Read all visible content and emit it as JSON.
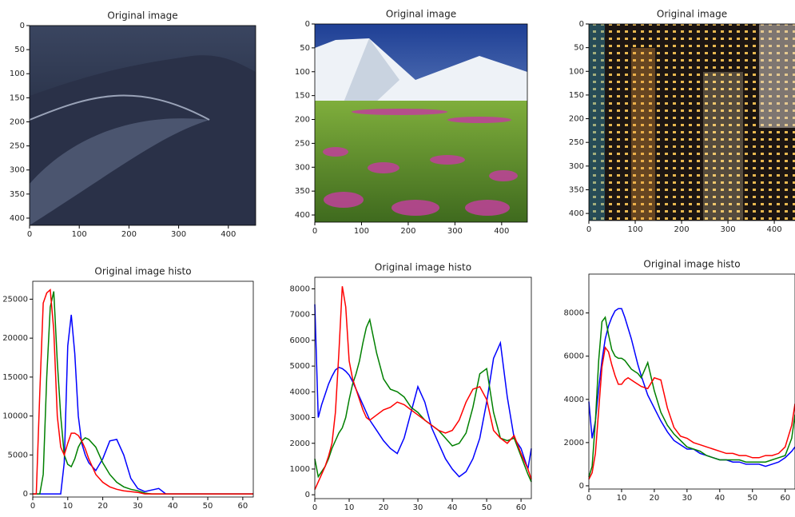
{
  "chart_data": [
    {
      "type": "image",
      "title": "Original image",
      "xlim": [
        0,
        455
      ],
      "ylim": [
        415,
        0
      ],
      "xticks": [
        0,
        100,
        200,
        300,
        400
      ],
      "yticks": [
        0,
        50,
        100,
        150,
        200,
        250,
        300,
        350,
        400
      ]
    },
    {
      "type": "image",
      "title": "Original image",
      "xlim": [
        0,
        455
      ],
      "ylim": [
        415,
        0
      ],
      "xticks": [
        0,
        100,
        200,
        300,
        400
      ],
      "yticks": [
        0,
        50,
        100,
        150,
        200,
        250,
        300,
        350,
        400
      ]
    },
    {
      "type": "image",
      "title": "Original image",
      "xlim": [
        0,
        455
      ],
      "ylim": [
        415,
        0
      ],
      "xticks": [
        0,
        100,
        200,
        300,
        400
      ],
      "yticks": [
        0,
        50,
        100,
        150,
        200,
        250,
        300,
        350,
        400
      ]
    },
    {
      "type": "line",
      "title": "Original image histo",
      "xlim": [
        0,
        63
      ],
      "ylim": [
        -400,
        27300
      ],
      "xticks": [
        0,
        10,
        20,
        30,
        40,
        50,
        60
      ],
      "yticks": [
        0,
        5000,
        10000,
        15000,
        20000,
        25000
      ],
      "x": [
        0,
        1,
        2,
        3,
        4,
        5,
        6,
        7,
        8,
        9,
        10,
        11,
        12,
        13,
        14,
        15,
        16,
        18,
        20,
        22,
        24,
        26,
        28,
        30,
        32,
        34,
        36,
        38,
        40,
        42,
        44,
        46,
        48,
        50,
        52,
        54,
        56,
        58,
        60,
        62,
        63
      ],
      "series": [
        {
          "color": "#0000ff",
          "values": [
            0,
            0,
            0,
            0,
            0,
            0,
            0,
            0,
            0,
            4000,
            19000,
            23000,
            18000,
            10000,
            6500,
            5000,
            4000,
            3000,
            4500,
            6800,
            7000,
            5000,
            2000,
            700,
            300,
            500,
            700,
            0,
            0,
            0,
            0,
            0,
            0,
            0,
            0,
            0,
            0,
            0,
            0,
            0,
            0
          ]
        },
        {
          "color": "#008000",
          "values": [
            0,
            0,
            0,
            2500,
            15000,
            24000,
            26000,
            17000,
            10000,
            5000,
            3800,
            3500,
            4500,
            6000,
            6800,
            7200,
            7000,
            6000,
            4000,
            2500,
            1500,
            900,
            600,
            400,
            100,
            0,
            0,
            0,
            0,
            0,
            0,
            0,
            0,
            0,
            0,
            0,
            0,
            0,
            0,
            0,
            0
          ]
        },
        {
          "color": "#ff0000",
          "values": [
            0,
            0,
            13000,
            24500,
            25800,
            26200,
            21000,
            10000,
            6000,
            5000,
            6500,
            7800,
            7800,
            7500,
            6800,
            5800,
            4500,
            2500,
            1500,
            900,
            600,
            400,
            300,
            200,
            0,
            0,
            0,
            0,
            0,
            0,
            0,
            0,
            0,
            0,
            0,
            0,
            0,
            0,
            0,
            0,
            0
          ]
        }
      ]
    },
    {
      "type": "line",
      "title": "Original image histo",
      "xlim": [
        0,
        63
      ],
      "ylim": [
        -150,
        8450
      ],
      "xticks": [
        0,
        10,
        20,
        30,
        40,
        50,
        60
      ],
      "yticks": [
        0,
        1000,
        2000,
        3000,
        4000,
        5000,
        6000,
        7000,
        8000
      ],
      "x": [
        0,
        1,
        2,
        3,
        4,
        5,
        6,
        7,
        8,
        9,
        10,
        11,
        12,
        13,
        14,
        15,
        16,
        18,
        20,
        22,
        24,
        26,
        28,
        30,
        32,
        34,
        36,
        38,
        40,
        42,
        44,
        46,
        48,
        50,
        52,
        54,
        56,
        58,
        60,
        62,
        63
      ],
      "series": [
        {
          "color": "#0000ff",
          "values": [
            7400,
            3000,
            3500,
            3900,
            4300,
            4600,
            4850,
            4950,
            4900,
            4800,
            4650,
            4400,
            4100,
            3800,
            3500,
            3200,
            2900,
            2500,
            2100,
            1800,
            1600,
            2200,
            3200,
            4200,
            3600,
            2600,
            2000,
            1400,
            1000,
            700,
            900,
            1400,
            2200,
            3600,
            5300,
            5900,
            3800,
            2200,
            1800,
            1000,
            1800
          ]
        },
        {
          "color": "#008000",
          "values": [
            1400,
            700,
            900,
            1100,
            1400,
            1800,
            2100,
            2400,
            2600,
            3000,
            3700,
            4300,
            4700,
            5200,
            5900,
            6500,
            6800,
            5500,
            4500,
            4100,
            4000,
            3800,
            3400,
            3200,
            2900,
            2700,
            2500,
            2200,
            1900,
            2000,
            2400,
            3400,
            4700,
            4900,
            3200,
            2200,
            2100,
            2200,
            1500,
            800,
            500
          ]
        },
        {
          "color": "#ff0000",
          "values": [
            200,
            500,
            800,
            1100,
            1500,
            2000,
            3200,
            5500,
            8100,
            7300,
            5200,
            4500,
            4100,
            3700,
            3300,
            3000,
            2900,
            3100,
            3300,
            3400,
            3600,
            3500,
            3300,
            3100,
            2900,
            2700,
            2500,
            2400,
            2500,
            2900,
            3600,
            4100,
            4200,
            3700,
            2500,
            2200,
            2000,
            2300,
            1600,
            1000,
            600
          ]
        }
      ]
    },
    {
      "type": "line",
      "title": "Original image histo",
      "xlim": [
        0,
        63
      ],
      "ylim": [
        -150,
        9800
      ],
      "xticks": [
        0,
        10,
        20,
        30,
        40,
        50,
        60
      ],
      "yticks": [
        0,
        2000,
        4000,
        6000,
        8000
      ],
      "x": [
        0,
        1,
        2,
        3,
        4,
        5,
        6,
        7,
        8,
        9,
        10,
        11,
        12,
        13,
        14,
        15,
        16,
        18,
        20,
        22,
        24,
        26,
        28,
        30,
        32,
        34,
        36,
        38,
        40,
        42,
        44,
        46,
        48,
        50,
        52,
        54,
        56,
        58,
        60,
        62,
        63
      ],
      "series": [
        {
          "color": "#0000ff",
          "values": [
            3900,
            2200,
            3000,
            4500,
            5800,
            6800,
            7400,
            7800,
            8100,
            8200,
            8200,
            7800,
            7300,
            6800,
            6200,
            5600,
            5100,
            4200,
            3600,
            3000,
            2500,
            2100,
            1900,
            1700,
            1700,
            1500,
            1400,
            1300,
            1200,
            1200,
            1100,
            1100,
            1000,
            1000,
            1000,
            900,
            1000,
            1100,
            1300,
            1600,
            1800
          ]
        },
        {
          "color": "#008000",
          "values": [
            400,
            900,
            3000,
            5800,
            7600,
            7800,
            7000,
            6300,
            6000,
            5900,
            5900,
            5800,
            5600,
            5400,
            5300,
            5200,
            5000,
            5700,
            4400,
            3400,
            2800,
            2400,
            2100,
            1800,
            1700,
            1600,
            1400,
            1300,
            1200,
            1200,
            1200,
            1200,
            1100,
            1100,
            1100,
            1100,
            1200,
            1300,
            1400,
            2200,
            3300
          ]
        },
        {
          "color": "#ff0000",
          "values": [
            300,
            600,
            1500,
            3500,
            5500,
            6400,
            6200,
            5600,
            5100,
            4700,
            4700,
            4900,
            5000,
            4900,
            4800,
            4700,
            4600,
            4500,
            5000,
            4900,
            3600,
            2700,
            2300,
            2200,
            2000,
            1900,
            1800,
            1700,
            1600,
            1500,
            1500,
            1400,
            1400,
            1300,
            1300,
            1400,
            1400,
            1500,
            1800,
            2800,
            3800
          ]
        }
      ]
    }
  ]
}
